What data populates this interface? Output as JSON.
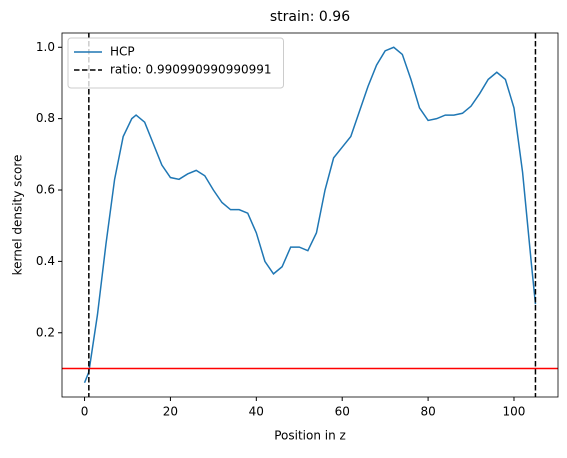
{
  "chart_data": {
    "type": "line",
    "title": "strain: 0.96",
    "x_label": "Position in z",
    "y_label": "kernel density score",
    "x": [
      0,
      1,
      3,
      5,
      7,
      9,
      11,
      12,
      14,
      16,
      18,
      20,
      22,
      24,
      26,
      28,
      30,
      32,
      34,
      36,
      38,
      40,
      42,
      44,
      46,
      48,
      50,
      52,
      54,
      56,
      58,
      60,
      62,
      64,
      66,
      68,
      70,
      72,
      74,
      76,
      78,
      80,
      82,
      84,
      86,
      88,
      90,
      92,
      94,
      96,
      98,
      100,
      102,
      104,
      105
    ],
    "series": [
      {
        "name": "HCP",
        "color": "#1f77b4",
        "values": [
          0.06,
          0.09,
          0.25,
          0.45,
          0.63,
          0.75,
          0.8,
          0.81,
          0.79,
          0.73,
          0.67,
          0.635,
          0.63,
          0.645,
          0.655,
          0.64,
          0.6,
          0.565,
          0.545,
          0.545,
          0.535,
          0.48,
          0.4,
          0.365,
          0.385,
          0.44,
          0.44,
          0.43,
          0.48,
          0.6,
          0.69,
          0.72,
          0.75,
          0.82,
          0.89,
          0.95,
          0.99,
          1.0,
          0.98,
          0.91,
          0.83,
          0.795,
          0.8,
          0.81,
          0.81,
          0.815,
          0.835,
          0.87,
          0.91,
          0.93,
          0.91,
          0.83,
          0.65,
          0.4,
          0.28
        ]
      }
    ],
    "vlines": {
      "name": "ratio: 0.990990990990991",
      "color": "#000000",
      "x": [
        1,
        105
      ]
    },
    "hline": {
      "color": "#ff0000",
      "y": 0.1
    },
    "xlim": [
      -5.25,
      110.25
    ],
    "xticks": [
      0,
      20,
      40,
      60,
      80,
      100
    ],
    "ylim": [
      0.02,
      1.04
    ],
    "yticks": [
      0.2,
      0.4,
      0.6,
      0.8,
      {
        "value": 1,
        "label": "1.0"
      }
    ],
    "legend": "upper left"
  }
}
